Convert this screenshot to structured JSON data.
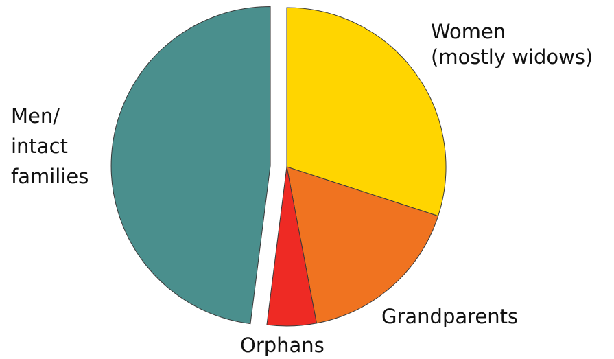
{
  "chart_data": {
    "type": "pie",
    "title": "",
    "start_angle_deg": 0,
    "direction": "clockwise",
    "slices": [
      {
        "label_lines": [
          "Women",
          "(mostly widows)"
        ],
        "value": 30,
        "color": "#FFD500",
        "exploded": false
      },
      {
        "label_lines": [
          "Grandparents"
        ],
        "value": 17,
        "color": "#F07320",
        "exploded": false
      },
      {
        "label_lines": [
          "Orphans"
        ],
        "value": 5,
        "color": "#EE2A24",
        "exploded": false
      },
      {
        "label_lines": [
          "Men/",
          "intact",
          "families"
        ],
        "value": 48,
        "color": "#4A8F8D",
        "exploded": true
      }
    ],
    "stroke_color": "#3a3a3a"
  }
}
